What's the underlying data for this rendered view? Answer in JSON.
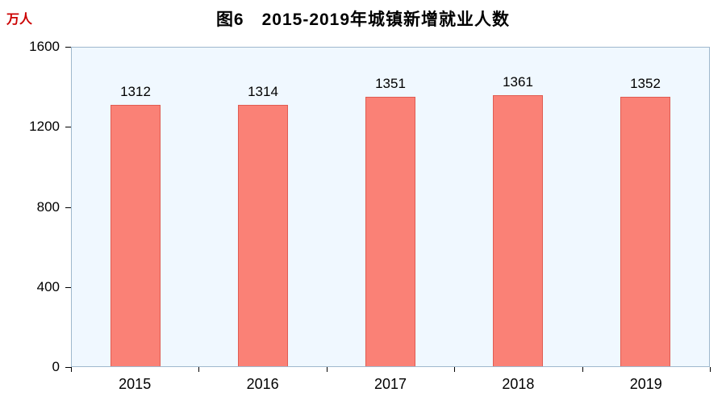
{
  "title": "图6　2015-2019年城镇新增就业人数",
  "unit_label": "万人",
  "colors": {
    "bar_fill": "#FA8176",
    "bar_border": "#E05C52",
    "plot_background": "#F0F8FF",
    "plot_border": "#9FB8CE",
    "unit_label_color": "#CC0000",
    "text": "#000000"
  },
  "chart_data": {
    "type": "bar",
    "title": "图6　2015-2019年城镇新增就业人数",
    "categories": [
      "2015",
      "2016",
      "2017",
      "2018",
      "2019"
    ],
    "values": [
      1312,
      1314,
      1351,
      1361,
      1352
    ],
    "xlabel": "",
    "ylabel": "万人",
    "ylim": [
      0,
      1600
    ],
    "yticks": [
      0,
      400,
      800,
      1200,
      1600
    ],
    "grid": false,
    "legend_position": "none",
    "data_labels": true
  }
}
